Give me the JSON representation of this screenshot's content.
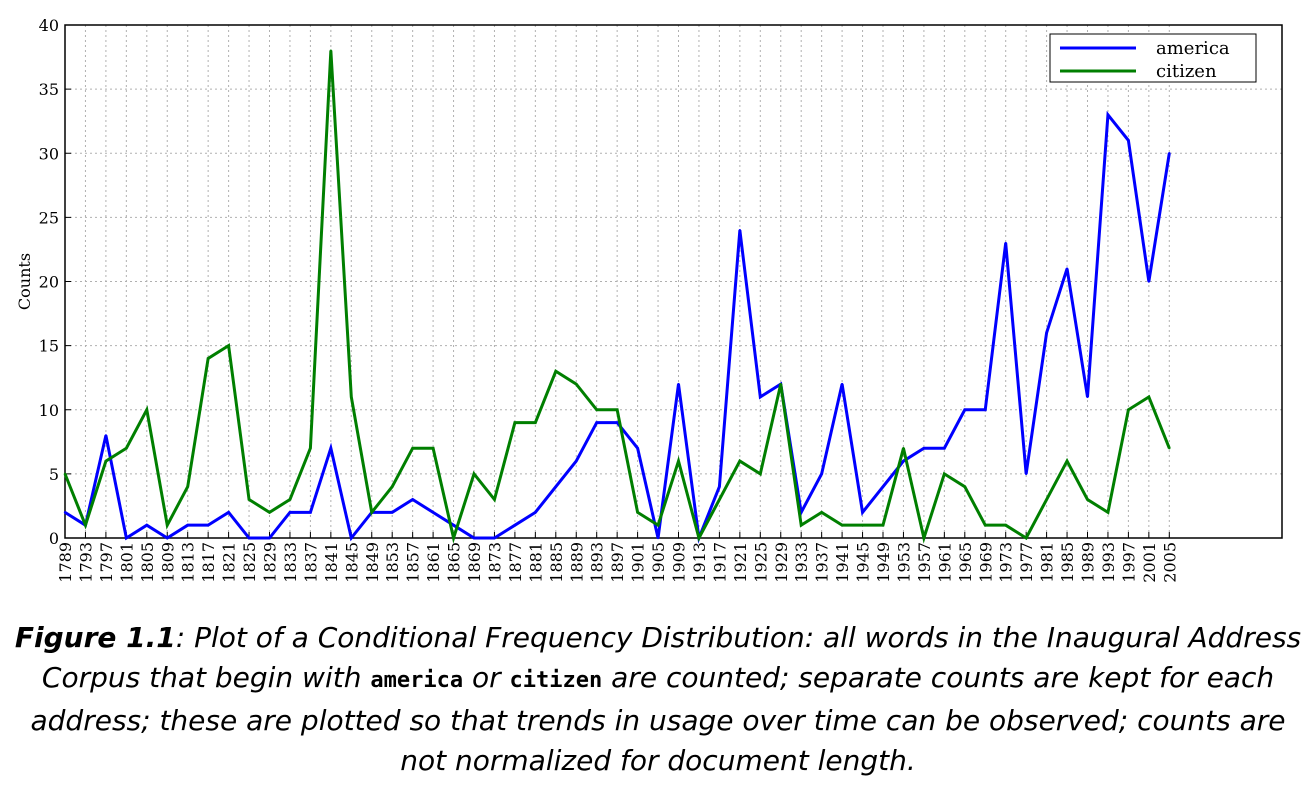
{
  "chart_data": {
    "type": "line",
    "title": "",
    "xlabel": "",
    "ylabel": "Counts",
    "ylim": [
      0,
      40
    ],
    "yticks": [
      "0",
      "5",
      "10",
      "15",
      "20",
      "25",
      "30",
      "35",
      "40"
    ],
    "grid": true,
    "legend_position": "top-right",
    "x": [
      "1789",
      "1793",
      "1797",
      "1801",
      "1805",
      "1809",
      "1813",
      "1817",
      "1821",
      "1825",
      "1829",
      "1833",
      "1837",
      "1841",
      "1845",
      "1849",
      "1853",
      "1857",
      "1861",
      "1865",
      "1869",
      "1873",
      "1877",
      "1881",
      "1885",
      "1889",
      "1893",
      "1897",
      "1901",
      "1905",
      "1909",
      "1913",
      "1917",
      "1921",
      "1925",
      "1929",
      "1933",
      "1937",
      "1941",
      "1945",
      "1949",
      "1953",
      "1957",
      "1961",
      "1965",
      "1969",
      "1973",
      "1977",
      "1981",
      "1985",
      "1989",
      "1993",
      "1997",
      "2001",
      "2005"
    ],
    "series": [
      {
        "name": "america",
        "color": "#0000ff",
        "values": [
          2,
          1,
          8,
          0,
          1,
          0,
          1,
          1,
          2,
          0,
          0,
          2,
          2,
          7,
          0,
          2,
          2,
          3,
          2,
          1,
          0,
          0,
          1,
          2,
          4,
          6,
          9,
          9,
          7,
          0,
          12,
          0,
          4,
          24,
          11,
          12,
          2,
          5,
          12,
          2,
          4,
          6,
          7,
          7,
          10,
          10,
          23,
          5,
          16,
          21,
          11,
          33,
          31,
          20,
          30
        ]
      },
      {
        "name": "citizen",
        "color": "#007f00",
        "values": [
          5,
          1,
          6,
          7,
          10,
          1,
          4,
          14,
          15,
          3,
          2,
          3,
          7,
          38,
          11,
          2,
          4,
          7,
          7,
          0,
          5,
          3,
          9,
          9,
          13,
          12,
          10,
          10,
          2,
          1,
          6,
          0,
          3,
          6,
          5,
          12,
          1,
          2,
          1,
          1,
          1,
          7,
          0,
          5,
          4,
          1,
          1,
          0,
          3,
          6,
          3,
          2,
          10,
          11,
          7
        ]
      }
    ]
  },
  "caption": {
    "figure_label": "Figure 1.1",
    "text_a": ": Plot of a Conditional Frequency Distribution: all words in the Inaugural Address Corpus that begin with ",
    "word1": "america",
    "text_b": " or ",
    "word2": "citizen",
    "text_c": " are counted; separate counts are kept for each address; these are plotted so that trends in usage over time can be observed; counts are not normalized for document length."
  }
}
